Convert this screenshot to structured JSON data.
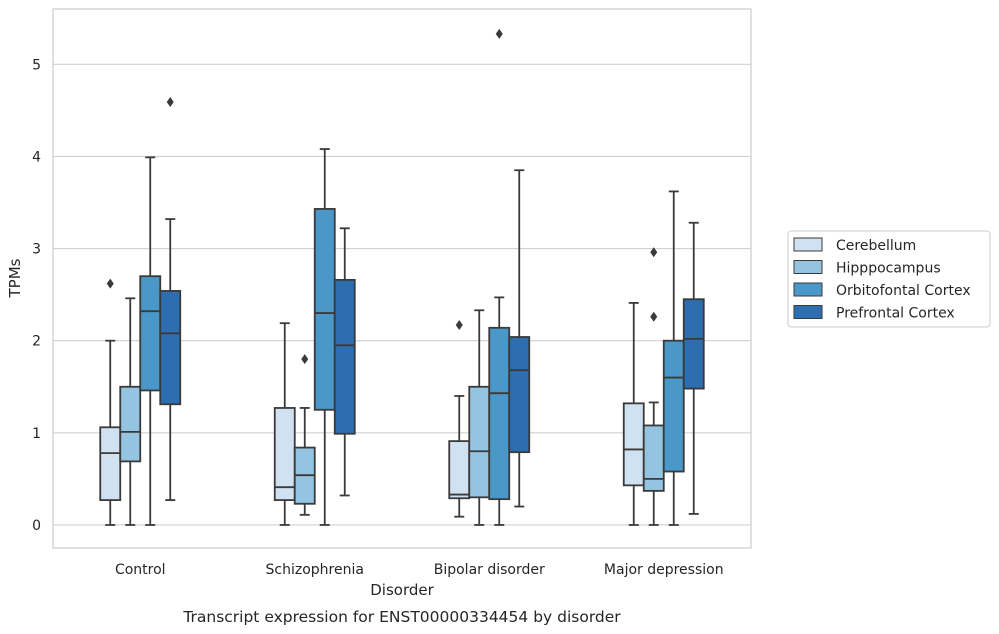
{
  "caption": "Transcript expression for ENST00000334454 by disorder",
  "chart_data": {
    "type": "box",
    "xlabel": "Disorder",
    "ylabel": "TPMs",
    "ylim": [
      -0.25,
      5.6
    ],
    "yticks": [
      0,
      1,
      2,
      3,
      4,
      5
    ],
    "grid": true,
    "legend_position": "right",
    "categories": [
      "Control",
      "Schizophrenia",
      "Bipolar disorder",
      "Major depression"
    ],
    "series": [
      {
        "name": "Cerebellum",
        "color": "#d0e1f2",
        "boxes": [
          {
            "whisker_low": 0,
            "q1": 0.27,
            "median": 0.78,
            "q3": 1.06,
            "whisker_high": 2.0,
            "outliers": [
              2.62
            ]
          },
          {
            "whisker_low": 0,
            "q1": 0.27,
            "median": 0.41,
            "q3": 1.27,
            "whisker_high": 2.19,
            "outliers": []
          },
          {
            "whisker_low": 0.09,
            "q1": 0.29,
            "median": 0.33,
            "q3": 0.91,
            "whisker_high": 1.4,
            "outliers": [
              2.17
            ]
          },
          {
            "whisker_low": 0,
            "q1": 0.43,
            "median": 0.82,
            "q3": 1.32,
            "whisker_high": 2.41,
            "outliers": []
          }
        ]
      },
      {
        "name": "Hipppocampus",
        "color": "#94c4df",
        "boxes": [
          {
            "whisker_low": 0,
            "q1": 0.69,
            "median": 1.01,
            "q3": 1.5,
            "whisker_high": 2.46,
            "outliers": []
          },
          {
            "whisker_low": 0.11,
            "q1": 0.23,
            "median": 0.54,
            "q3": 0.84,
            "whisker_high": 1.27,
            "outliers": [
              1.8
            ]
          },
          {
            "whisker_low": 0,
            "q1": 0.3,
            "median": 0.8,
            "q3": 1.5,
            "whisker_high": 2.33,
            "outliers": []
          },
          {
            "whisker_low": 0,
            "q1": 0.37,
            "median": 0.5,
            "q3": 1.08,
            "whisker_high": 1.33,
            "outliers": [
              2.26,
              2.96
            ]
          }
        ]
      },
      {
        "name": "Orbitofontal Cortex",
        "color": "#4a98c9",
        "boxes": [
          {
            "whisker_low": 0,
            "q1": 1.46,
            "median": 2.32,
            "q3": 2.7,
            "whisker_high": 3.99,
            "outliers": []
          },
          {
            "whisker_low": 0,
            "q1": 1.25,
            "median": 2.3,
            "q3": 3.43,
            "whisker_high": 4.08,
            "outliers": []
          },
          {
            "whisker_low": 0,
            "q1": 0.28,
            "median": 1.43,
            "q3": 2.14,
            "whisker_high": 2.47,
            "outliers": [
              5.33
            ]
          },
          {
            "whisker_low": 0,
            "q1": 0.58,
            "median": 1.6,
            "q3": 2.0,
            "whisker_high": 3.62,
            "outliers": []
          }
        ]
      },
      {
        "name": "Prefrontal Cortex",
        "color": "#2c6eaf",
        "boxes": [
          {
            "whisker_low": 0.27,
            "q1": 1.31,
            "median": 2.08,
            "q3": 2.54,
            "whisker_high": 3.32,
            "outliers": [
              4.59
            ]
          },
          {
            "whisker_low": 0.32,
            "q1": 0.99,
            "median": 1.95,
            "q3": 2.66,
            "whisker_high": 3.22,
            "outliers": []
          },
          {
            "whisker_low": 0.2,
            "q1": 0.79,
            "median": 1.68,
            "q3": 2.04,
            "whisker_high": 3.85,
            "outliers": []
          },
          {
            "whisker_low": 0.12,
            "q1": 1.48,
            "median": 2.02,
            "q3": 2.45,
            "whisker_high": 3.28,
            "outliers": []
          }
        ]
      }
    ]
  }
}
